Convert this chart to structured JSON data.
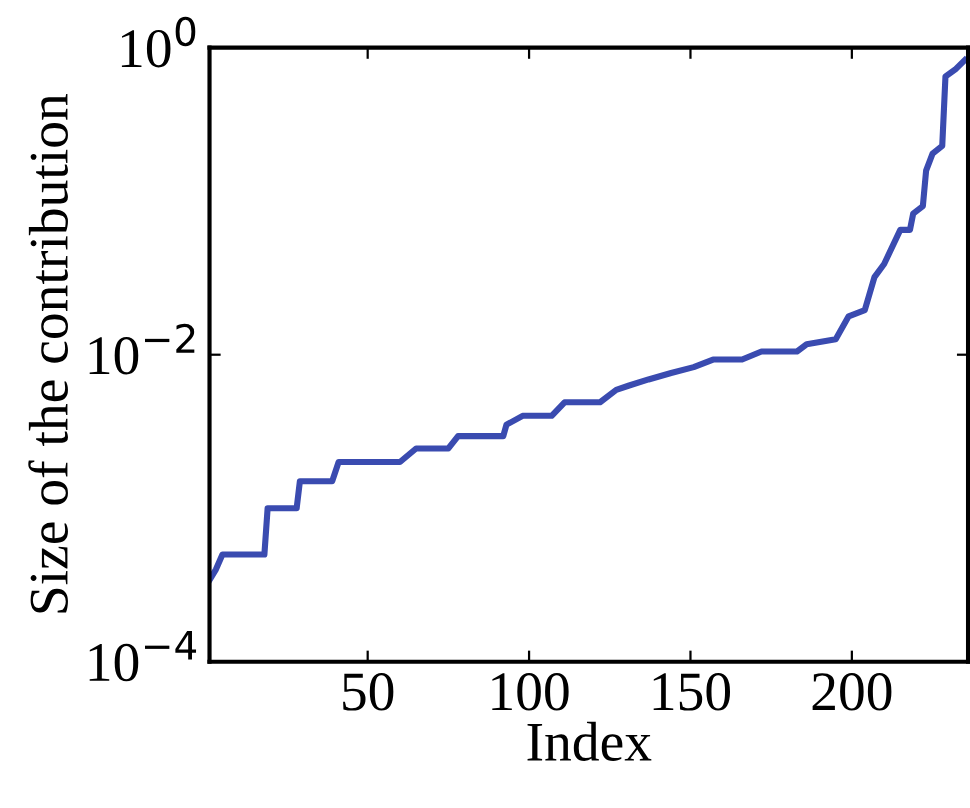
{
  "chart_data": {
    "type": "line",
    "xlabel": "Index",
    "ylabel": "Size of the contribution",
    "log": "y",
    "xlim": [
      1,
      236
    ],
    "ylim": [
      0.0001,
      1
    ],
    "xticks": [
      50,
      100,
      150,
      200
    ],
    "yticks": [
      {
        "value": 0.0001,
        "label": "10$^{−4}$"
      },
      {
        "value": 0.01,
        "label": "10$^{−2}$"
      },
      {
        "value": 1,
        "label": "10$^{0}$"
      }
    ],
    "grid": false,
    "marker": "none",
    "line_style": "solid",
    "series": [
      {
        "color": "#3a4bb0",
        "x": [
          1,
          3,
          5,
          18,
          19,
          28,
          29,
          39,
          41,
          60,
          65,
          75,
          78,
          92,
          93,
          98,
          107,
          111,
          122,
          127,
          131,
          137,
          144,
          151,
          157,
          166,
          172,
          183,
          186,
          195,
          199,
          204,
          207,
          210,
          215,
          218,
          219,
          222,
          223,
          225,
          228,
          229,
          232,
          235
        ],
        "values": [
          0.00034,
          0.0004,
          0.0005,
          0.0005,
          0.001,
          0.001,
          0.0015,
          0.0015,
          0.002,
          0.002,
          0.00245,
          0.00245,
          0.00295,
          0.00295,
          0.0035,
          0.004,
          0.004,
          0.0049,
          0.0049,
          0.0059,
          0.0063,
          0.0069,
          0.0076,
          0.0083,
          0.0093,
          0.0093,
          0.0105,
          0.0105,
          0.0117,
          0.0126,
          0.0178,
          0.0195,
          0.032,
          0.039,
          0.065,
          0.065,
          0.083,
          0.093,
          0.158,
          0.204,
          0.229,
          0.65,
          0.72,
          0.83
        ]
      }
    ]
  }
}
